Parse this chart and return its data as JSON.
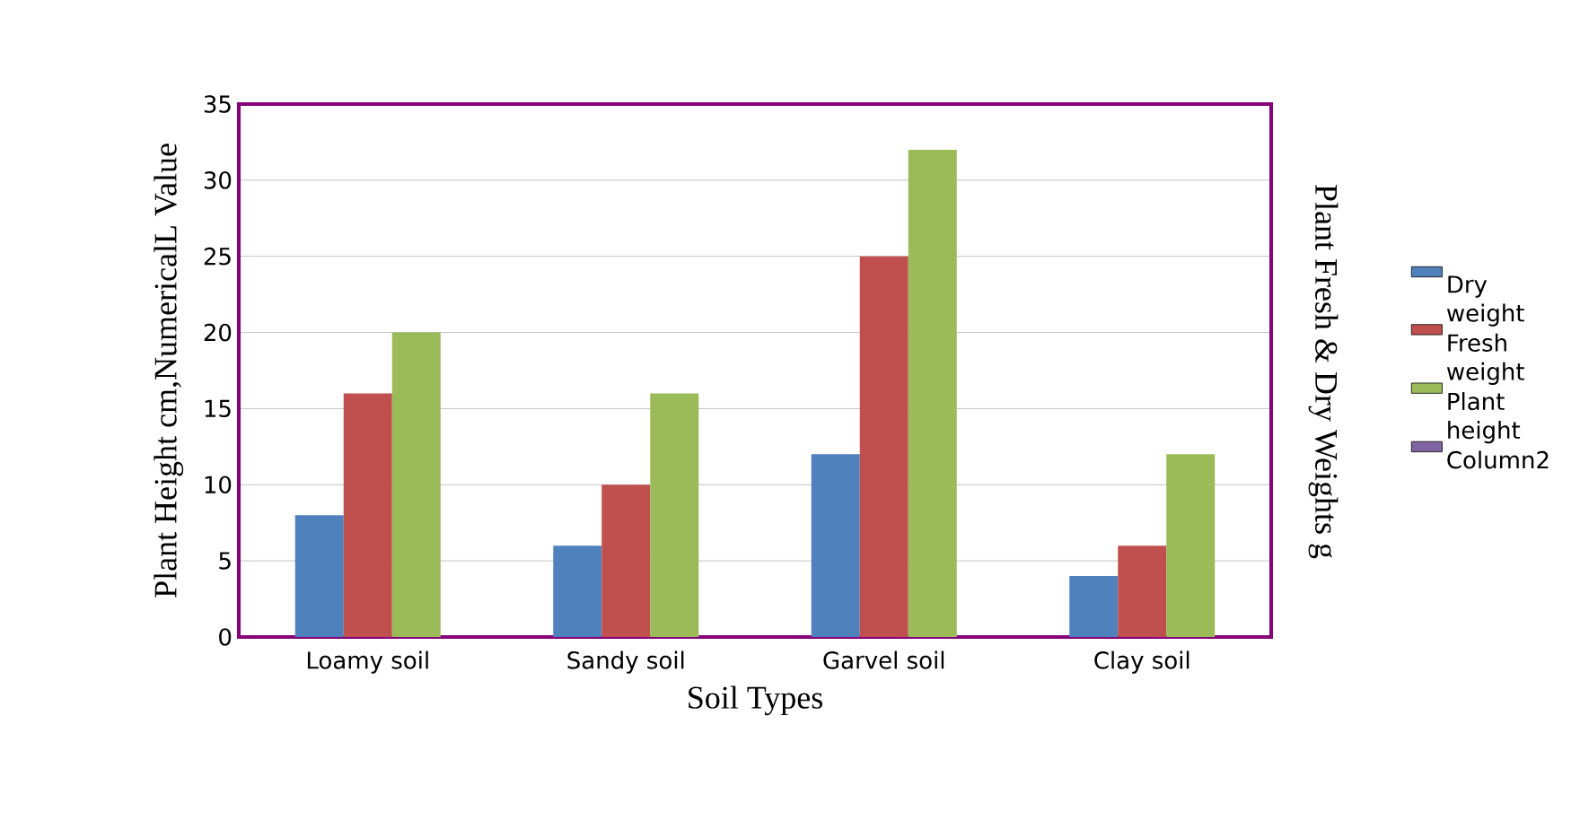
{
  "chart_data": {
    "type": "bar",
    "xlabel": "Soil Types",
    "ylabel": "Plant  Height  cm,NumericalL  Value",
    "y2label": "Plant Fresh & Dry Weights g",
    "categories": [
      "Loamy soil",
      "Sandy soil",
      "Garvel soil",
      "Clay soil"
    ],
    "series": [
      {
        "name": "Dry weight",
        "color": "#4f81bd",
        "values": [
          8,
          6,
          12,
          4
        ]
      },
      {
        "name": "Fresh weight",
        "color": "#c0504d",
        "values": [
          16,
          10,
          25,
          6
        ]
      },
      {
        "name": "Plant height",
        "color": "#9bbb59",
        "values": [
          20,
          16,
          32,
          12
        ]
      },
      {
        "name": "Column2",
        "color": "#8064a2",
        "values": [
          null,
          null,
          null,
          null
        ]
      }
    ],
    "ylim": [
      0,
      35
    ],
    "yticks": [
      0,
      5,
      10,
      15,
      20,
      25,
      30,
      35
    ],
    "grid": "y",
    "legend": "right"
  }
}
